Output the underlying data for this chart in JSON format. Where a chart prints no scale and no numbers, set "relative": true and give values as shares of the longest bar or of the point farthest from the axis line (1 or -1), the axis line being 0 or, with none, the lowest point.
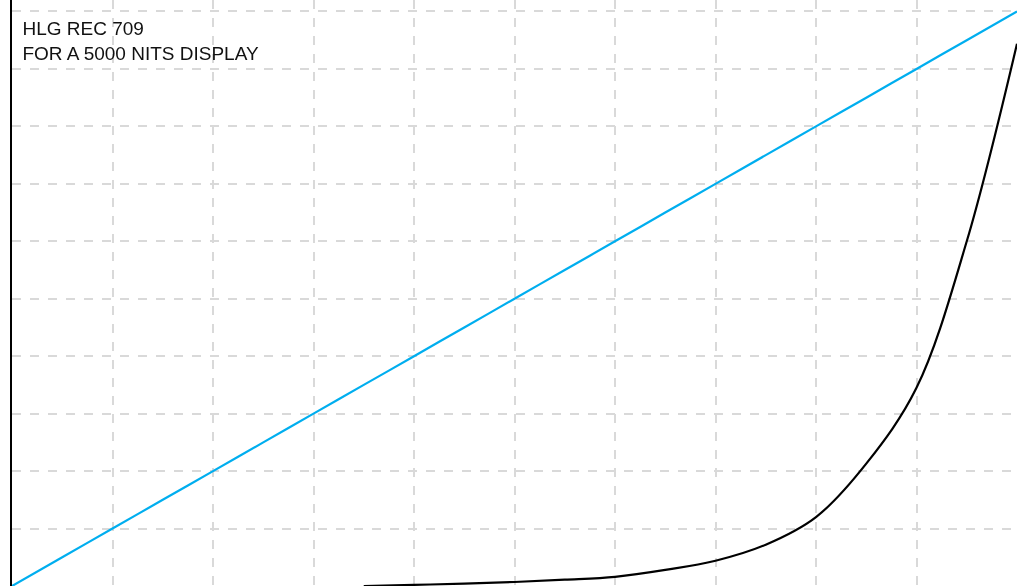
{
  "chart_data": {
    "type": "line",
    "title": "HLG REC 709\nFOR A 5000 NITS DISPLAY",
    "relative": true,
    "categories": [
      null,
      null,
      null,
      null,
      null,
      null,
      null,
      null,
      null,
      null,
      null,
      null,
      null,
      null,
      null,
      null,
      null,
      null,
      null,
      null,
      null
    ],
    "series": [
      {
        "color": "#00aeef",
        "values": [
          0,
          0.05,
          0.1,
          0.15,
          0.2,
          0.25,
          0.3,
          0.35,
          0.4,
          0.45,
          0.5,
          0.55,
          0.6,
          0.65,
          0.7,
          0.75,
          0.8,
          0.85,
          0.9,
          0.95,
          1
        ]
      },
      {
        "color": "#000000",
        "values": [
          null,
          null,
          null,
          null,
          null,
          null,
          null,
          0,
          0.002,
          0.004,
          0.007,
          0.011,
          0.016,
          0.028,
          0.044,
          0.072,
          0.12,
          0.213,
          0.345,
          0.6,
          0.944
        ]
      }
    ],
    "grid": true,
    "legend": false,
    "line_style": "solid",
    "marker": "none"
  }
}
